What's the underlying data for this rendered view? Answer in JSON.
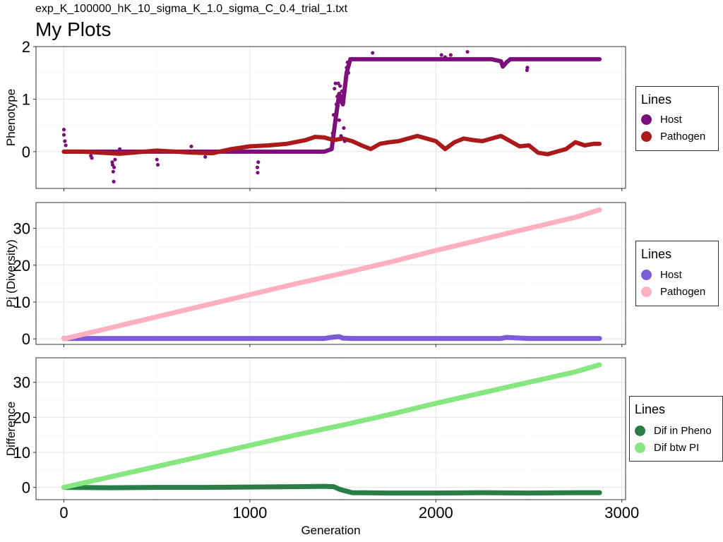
{
  "header": {
    "subtitle": "exp_K_100000_hK_10_sigma_K_1.0_sigma_C_0.4_trial_1.txt",
    "title": "My Plots"
  },
  "xlabel": "Generation",
  "xticks": [
    0,
    1000,
    2000,
    3000
  ],
  "xlim": [
    -150,
    3020
  ],
  "chart_data": [
    {
      "type": "scatter",
      "ylabel": "Phenotype",
      "ylim": [
        -0.7,
        2.0
      ],
      "yticks": [
        0,
        1,
        2
      ],
      "grid": true,
      "legend": {
        "title": "Lines",
        "placement": "right",
        "items": [
          {
            "label": "Host",
            "color": "#7b0f7b"
          },
          {
            "label": "Pathogen",
            "color": "#aa1a1a"
          }
        ]
      },
      "series": [
        {
          "name": "Host",
          "color": "#7b0f7b",
          "x": [
            0,
            100,
            200,
            300,
            400,
            500,
            600,
            700,
            800,
            900,
            1000,
            1100,
            1200,
            1300,
            1400,
            1440,
            1460,
            1480,
            1500,
            1520,
            1540,
            1600,
            1700,
            1800,
            1900,
            2000,
            2100,
            2200,
            2300,
            2350,
            2360,
            2380,
            2400,
            2500,
            2600,
            2700,
            2800,
            2880
          ],
          "y": [
            0,
            0,
            0,
            0,
            0,
            0,
            0,
            0,
            0,
            0,
            0,
            0,
            0,
            0,
            0,
            0.05,
            0.6,
            1.1,
            0.9,
            1.5,
            1.76,
            1.76,
            1.76,
            1.76,
            1.76,
            1.76,
            1.76,
            1.76,
            1.76,
            1.72,
            1.62,
            1.7,
            1.76,
            1.76,
            1.76,
            1.76,
            1.76,
            1.76
          ]
        },
        {
          "name": "Pathogen",
          "color": "#aa1a1a",
          "x": [
            0,
            100,
            200,
            300,
            400,
            500,
            600,
            700,
            800,
            900,
            1000,
            1100,
            1200,
            1300,
            1350,
            1400,
            1450,
            1500,
            1550,
            1600,
            1650,
            1700,
            1750,
            1800,
            1850,
            1900,
            1950,
            2000,
            2050,
            2100,
            2150,
            2200,
            2250,
            2300,
            2350,
            2400,
            2450,
            2500,
            2550,
            2600,
            2650,
            2700,
            2750,
            2800,
            2850,
            2880
          ],
          "y": [
            0,
            0,
            -0.02,
            -0.04,
            -0.01,
            0.02,
            0.0,
            -0.02,
            -0.03,
            0.05,
            0.1,
            0.12,
            0.15,
            0.22,
            0.28,
            0.27,
            0.22,
            0.25,
            0.2,
            0.12,
            0.05,
            0.15,
            0.18,
            0.2,
            0.25,
            0.3,
            0.25,
            0.2,
            0.05,
            0.18,
            0.25,
            0.22,
            0.2,
            0.25,
            0.3,
            0.2,
            0.1,
            0.12,
            -0.02,
            -0.05,
            0.0,
            0.05,
            0.18,
            0.12,
            0.15,
            0.15
          ]
        }
      ],
      "outliers": [
        {
          "x": 0,
          "y": 0.42
        },
        {
          "x": 0,
          "y": 0.32
        },
        {
          "x": 5,
          "y": 0.2
        },
        {
          "x": 10,
          "y": 0.12
        },
        {
          "x": 145,
          "y": -0.08
        },
        {
          "x": 150,
          "y": -0.12
        },
        {
          "x": 260,
          "y": -0.2
        },
        {
          "x": 262,
          "y": -0.25
        },
        {
          "x": 265,
          "y": -0.38
        },
        {
          "x": 268,
          "y": -0.57
        },
        {
          "x": 270,
          "y": -0.3
        },
        {
          "x": 275,
          "y": -0.15
        },
        {
          "x": 300,
          "y": 0.05
        },
        {
          "x": 500,
          "y": -0.15
        },
        {
          "x": 505,
          "y": -0.25
        },
        {
          "x": 685,
          "y": 0.1
        },
        {
          "x": 760,
          "y": -0.1
        },
        {
          "x": 1040,
          "y": -0.3
        },
        {
          "x": 1042,
          "y": -0.4
        },
        {
          "x": 1045,
          "y": -0.2
        },
        {
          "x": 1445,
          "y": 0.35
        },
        {
          "x": 1450,
          "y": 0.7
        },
        {
          "x": 1455,
          "y": 1.2
        },
        {
          "x": 1460,
          "y": 1.3
        },
        {
          "x": 1465,
          "y": 0.9
        },
        {
          "x": 1470,
          "y": 1.05
        },
        {
          "x": 1475,
          "y": 1.3
        },
        {
          "x": 1480,
          "y": 0.6
        },
        {
          "x": 1485,
          "y": 1.25
        },
        {
          "x": 1490,
          "y": 0.3
        },
        {
          "x": 1495,
          "y": 1.15
        },
        {
          "x": 1500,
          "y": 0.95
        },
        {
          "x": 1505,
          "y": 0.45
        },
        {
          "x": 1510,
          "y": 0.2
        },
        {
          "x": 1520,
          "y": 1.6
        },
        {
          "x": 1525,
          "y": 1.7
        },
        {
          "x": 1530,
          "y": 1.5
        },
        {
          "x": 1660,
          "y": 1.88
        },
        {
          "x": 2030,
          "y": 1.84
        },
        {
          "x": 2050,
          "y": 1.8
        },
        {
          "x": 2080,
          "y": 1.84
        },
        {
          "x": 2170,
          "y": 1.9
        },
        {
          "x": 2490,
          "y": 1.55
        },
        {
          "x": 2492,
          "y": 1.6
        }
      ]
    },
    {
      "type": "line",
      "ylabel": "Pi (Diversity)",
      "ylim": [
        -1.5,
        37
      ],
      "yticks": [
        0,
        10,
        20,
        30
      ],
      "grid": true,
      "legend": {
        "title": "Lines",
        "placement": "right",
        "items": [
          {
            "label": "Host",
            "color": "#7b5cd6"
          },
          {
            "label": "Pathogen",
            "color": "#ffb0c0"
          }
        ]
      },
      "series": [
        {
          "name": "Host",
          "color": "#7b5cd6",
          "x": [
            0,
            500,
            1000,
            1400,
            1450,
            1480,
            1500,
            1550,
            2000,
            2350,
            2380,
            2500,
            2880
          ],
          "y": [
            0.1,
            0.1,
            0.1,
            0.1,
            0.5,
            0.6,
            0.2,
            0.1,
            0.1,
            0.1,
            0.4,
            0.1,
            0.1
          ]
        },
        {
          "name": "Pathogen",
          "color": "#ffb0c0",
          "x": [
            0,
            250,
            500,
            750,
            1000,
            1250,
            1500,
            1750,
            2000,
            2250,
            2500,
            2750,
            2880
          ],
          "y": [
            0,
            3,
            6,
            9,
            12,
            15,
            17.8,
            20.8,
            24,
            27,
            30,
            33,
            35
          ]
        }
      ]
    },
    {
      "type": "line",
      "ylabel": "Difference",
      "ylim": [
        -3.5,
        37
      ],
      "yticks": [
        0,
        10,
        20,
        30
      ],
      "grid": true,
      "legend": {
        "title": "Lines",
        "placement": "right",
        "items": [
          {
            "label": "Dif in Pheno",
            "color": "#2a7d45"
          },
          {
            "label": "Dif btw PI",
            "color": "#86e67f"
          }
        ]
      },
      "series": [
        {
          "name": "Dif in Pheno",
          "color": "#2a7d45",
          "x": [
            0,
            250,
            500,
            750,
            1000,
            1250,
            1400,
            1450,
            1480,
            1500,
            1550,
            1750,
            2000,
            2250,
            2500,
            2750,
            2880
          ],
          "y": [
            0,
            -0.1,
            0,
            0,
            0.1,
            0.2,
            0.3,
            0.2,
            -0.5,
            -0.8,
            -1.5,
            -1.6,
            -1.6,
            -1.5,
            -1.6,
            -1.5,
            -1.5
          ]
        },
        {
          "name": "Dif btw PI",
          "color": "#86e67f",
          "x": [
            0,
            250,
            500,
            750,
            1000,
            1250,
            1500,
            1750,
            2000,
            2250,
            2500,
            2750,
            2880
          ],
          "y": [
            0,
            3,
            6,
            9,
            12,
            15,
            17.8,
            20.8,
            24,
            27,
            30,
            33,
            35
          ]
        }
      ]
    }
  ]
}
